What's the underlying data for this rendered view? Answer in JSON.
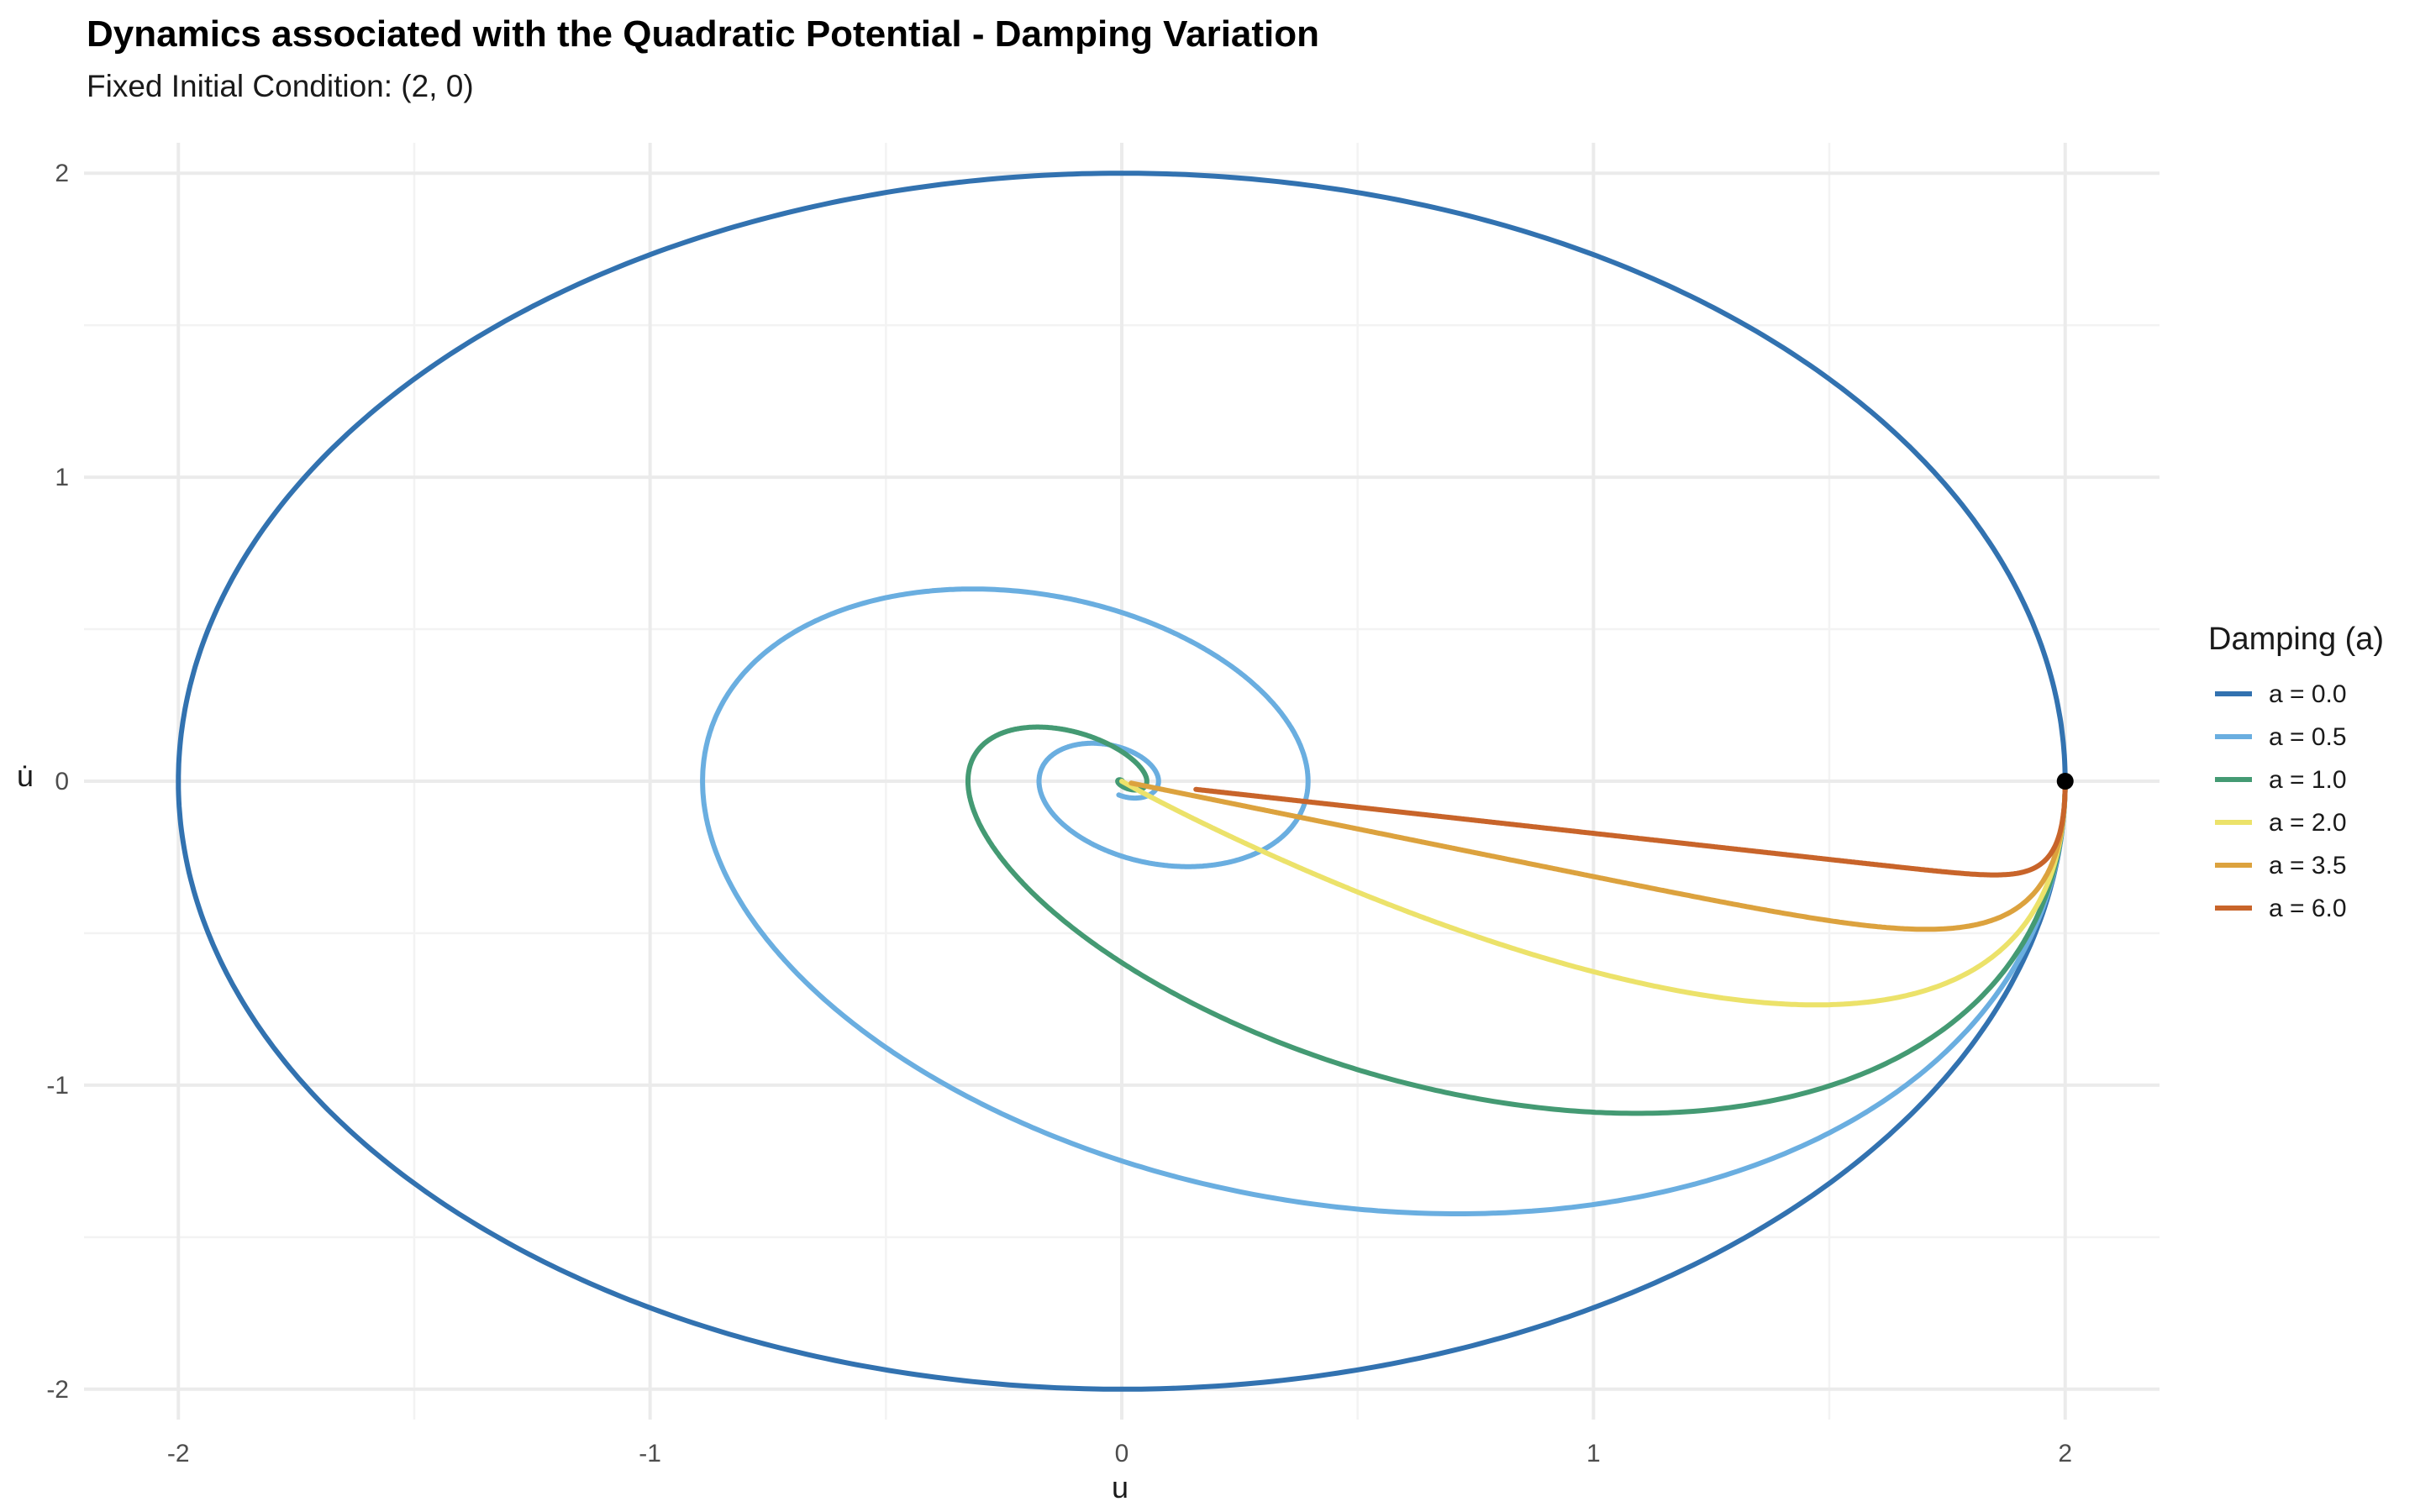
{
  "chart_data": {
    "type": "line",
    "title": "Dynamics associated with the Quadratic Potential - Damping Variation",
    "subtitle": "Fixed Initial Condition: (2, 0)",
    "xlabel": "u",
    "ylabel": "u̇",
    "xlim": [
      -2.2,
      2.2
    ],
    "ylim": [
      -2.1,
      2.1
    ],
    "x_ticks": [
      -2,
      -1,
      0,
      1,
      2
    ],
    "y_ticks": [
      -2,
      -1,
      0,
      1,
      2
    ],
    "x_tick_labels": [
      "-2",
      "-1",
      "0",
      "1",
      "2"
    ],
    "y_tick_labels": [
      "-2",
      "-1",
      "0",
      "1",
      "2"
    ],
    "grid": true,
    "legend_position": "right",
    "legend_title": "Damping (a)",
    "initial_condition": {
      "u": 2,
      "du": 0
    },
    "series": [
      {
        "name": "a = 0.0",
        "damping": 0.0,
        "color": "#3272b0"
      },
      {
        "name": "a = 0.5",
        "damping": 0.5,
        "color": "#6aaee0"
      },
      {
        "name": "a = 1.0",
        "damping": 1.0,
        "color": "#449a73"
      },
      {
        "name": "a = 2.0",
        "damping": 2.0,
        "color": "#ece26a"
      },
      {
        "name": "a = 3.5",
        "damping": 3.5,
        "color": "#dca23e"
      },
      {
        "name": "a = 6.0",
        "damping": 6.0,
        "color": "#c8642a"
      }
    ]
  }
}
